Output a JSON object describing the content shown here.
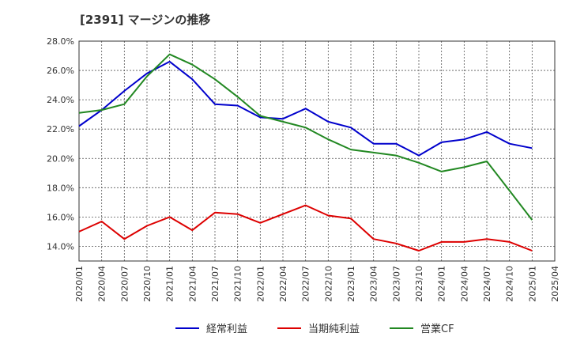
{
  "chart_data": {
    "type": "line",
    "title": "[2391]  マージンの推移",
    "xlabel": "",
    "ylabel": "",
    "ylim": [
      13.0,
      28.0
    ],
    "yticks": [
      "14.0%",
      "16.0%",
      "18.0%",
      "20.0%",
      "22.0%",
      "24.0%",
      "26.0%",
      "28.0%"
    ],
    "categories": [
      "2020/01",
      "2020/04",
      "2020/07",
      "2020/10",
      "2021/01",
      "2021/04",
      "2021/07",
      "2021/10",
      "2022/01",
      "2022/04",
      "2022/07",
      "2022/10",
      "2023/01",
      "2023/04",
      "2023/07",
      "2023/10",
      "2024/01",
      "2024/04",
      "2024/07",
      "2024/10",
      "2025/01",
      "2025/04"
    ],
    "grid": true,
    "legend_position": "bottom",
    "series": [
      {
        "name": "経常利益",
        "color": "#0000cc",
        "values": [
          22.2,
          23.3,
          24.6,
          25.8,
          26.6,
          25.4,
          23.7,
          23.6,
          22.8,
          22.7,
          23.4,
          22.5,
          22.1,
          21.0,
          21.0,
          20.2,
          21.1,
          21.3,
          21.8,
          21.0,
          20.7,
          null
        ]
      },
      {
        "name": "当期純利益",
        "color": "#dd0000",
        "values": [
          15.0,
          15.7,
          14.5,
          15.4,
          16.0,
          15.1,
          16.3,
          16.2,
          15.6,
          16.2,
          16.8,
          16.1,
          15.9,
          14.5,
          14.2,
          13.7,
          14.3,
          14.3,
          14.5,
          14.3,
          13.7,
          null
        ]
      },
      {
        "name": "営業CF",
        "color": "#228822",
        "values": [
          23.1,
          23.3,
          23.7,
          25.6,
          27.1,
          26.4,
          25.4,
          24.2,
          22.9,
          22.5,
          22.1,
          21.3,
          20.6,
          20.4,
          20.2,
          19.7,
          19.1,
          19.4,
          19.8,
          17.8,
          15.8,
          null
        ]
      }
    ]
  }
}
